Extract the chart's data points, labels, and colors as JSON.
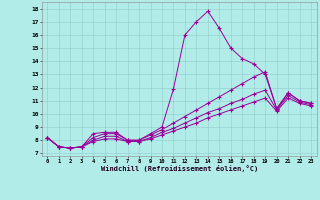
{
  "xlabel": "Windchill (Refroidissement éolien,°C)",
  "bg_color": "#b2ece8",
  "grid_color": "#90cccc",
  "line_color": "#990099",
  "xlim_min": -0.5,
  "xlim_max": 23.5,
  "ylim_min": 6.8,
  "ylim_max": 18.5,
  "yticks": [
    7,
    8,
    9,
    10,
    11,
    12,
    13,
    14,
    15,
    16,
    17,
    18
  ],
  "xticks": [
    0,
    1,
    2,
    3,
    4,
    5,
    6,
    7,
    8,
    9,
    10,
    11,
    12,
    13,
    14,
    15,
    16,
    17,
    18,
    19,
    20,
    21,
    22,
    23
  ],
  "x": [
    0,
    1,
    2,
    3,
    4,
    5,
    6,
    7,
    8,
    9,
    10,
    11,
    12,
    13,
    14,
    15,
    16,
    17,
    18,
    19,
    20,
    21,
    22,
    23
  ],
  "line1": [
    8.2,
    7.5,
    7.4,
    7.5,
    8.5,
    8.6,
    8.6,
    8.0,
    8.0,
    8.5,
    9.0,
    11.9,
    16.0,
    17.0,
    17.8,
    16.5,
    15.0,
    14.2,
    13.8,
    13.0,
    10.4,
    11.6,
    11.0,
    10.8
  ],
  "line2": [
    8.2,
    7.5,
    7.4,
    7.5,
    8.2,
    8.5,
    8.5,
    8.0,
    8.0,
    8.4,
    8.8,
    9.3,
    9.8,
    10.3,
    10.8,
    11.3,
    11.8,
    12.3,
    12.8,
    13.2,
    10.4,
    11.6,
    11.0,
    10.8
  ],
  "line3": [
    8.2,
    7.5,
    7.4,
    7.5,
    8.0,
    8.3,
    8.3,
    7.9,
    7.9,
    8.2,
    8.6,
    8.9,
    9.3,
    9.7,
    10.1,
    10.4,
    10.8,
    11.1,
    11.5,
    11.8,
    10.3,
    11.4,
    10.9,
    10.7
  ],
  "line4": [
    8.2,
    7.5,
    7.4,
    7.5,
    7.9,
    8.1,
    8.1,
    7.9,
    7.9,
    8.1,
    8.4,
    8.7,
    9.0,
    9.3,
    9.7,
    10.0,
    10.3,
    10.6,
    10.9,
    11.2,
    10.2,
    11.2,
    10.8,
    10.6
  ]
}
